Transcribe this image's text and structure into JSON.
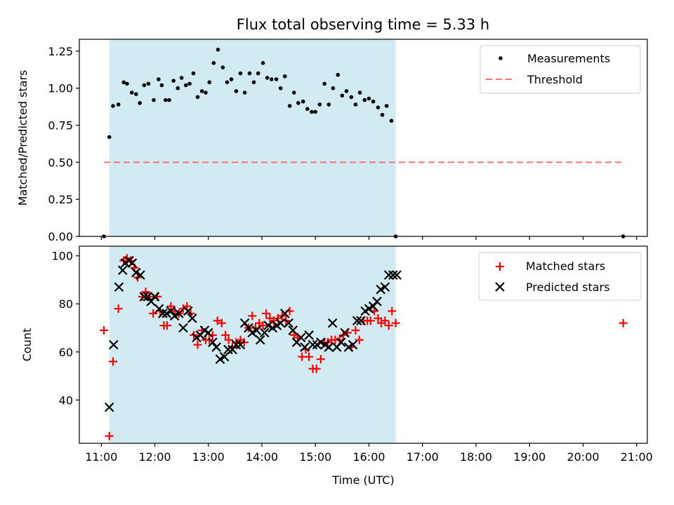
{
  "chart_data": [
    {
      "type": "scatter",
      "title": "Flux total observing time = 5.33 h",
      "xlabel": "",
      "ylabel": "Matched/Predicted stars",
      "xlim": [
        10.59,
        21.2
      ],
      "ylim": [
        0.0,
        1.33
      ],
      "yticks": [
        "0.00",
        "0.25",
        "0.50",
        "0.75",
        "1.00",
        "1.25"
      ],
      "shaded_span": {
        "x_start": 11.15,
        "x_end": 16.5,
        "color": "#add8e6"
      },
      "series": [
        {
          "name": "Measurements",
          "marker": "dot",
          "color": "#000000",
          "x": [
            11.05,
            11.15,
            11.22,
            11.32,
            11.42,
            11.48,
            11.57,
            11.65,
            11.72,
            11.8,
            11.88,
            11.98,
            12.07,
            12.13,
            12.2,
            12.27,
            12.35,
            12.43,
            12.5,
            12.58,
            12.65,
            12.72,
            12.8,
            12.88,
            12.95,
            13.02,
            13.1,
            13.18,
            13.27,
            13.35,
            13.43,
            13.52,
            13.6,
            13.68,
            13.77,
            13.85,
            13.93,
            14.02,
            14.1,
            14.18,
            14.27,
            14.35,
            14.43,
            14.52,
            14.6,
            14.68,
            14.77,
            14.85,
            14.93,
            15.0,
            15.08,
            15.17,
            15.25,
            15.33,
            15.42,
            15.5,
            15.58,
            15.67,
            15.75,
            15.83,
            15.92,
            16.0,
            16.08,
            16.17,
            16.25,
            16.33,
            16.42,
            16.5,
            20.75
          ],
          "y": [
            0.0,
            0.67,
            0.88,
            0.89,
            1.04,
            1.03,
            0.97,
            0.96,
            0.9,
            1.02,
            1.03,
            0.92,
            1.06,
            1.02,
            0.92,
            0.92,
            1.05,
            1.0,
            1.07,
            1.02,
            1.03,
            1.1,
            0.94,
            0.98,
            0.97,
            1.04,
            1.17,
            1.26,
            1.14,
            1.04,
            1.06,
            0.98,
            1.1,
            0.97,
            1.1,
            1.04,
            1.1,
            1.17,
            1.07,
            1.06,
            1.06,
            1.0,
            1.08,
            0.88,
            0.97,
            0.9,
            0.91,
            0.86,
            0.84,
            0.84,
            0.89,
            1.03,
            0.89,
            1.0,
            1.09,
            0.95,
            0.98,
            0.94,
            0.89,
            0.97,
            0.92,
            0.93,
            0.91,
            0.87,
            0.82,
            0.88,
            0.78,
            0.0,
            0.0
          ]
        },
        {
          "name": "Threshold",
          "marker": "dashed-line",
          "color": "#ff7070",
          "x": [
            11.05,
            20.75
          ],
          "y": [
            0.5,
            0.5
          ]
        }
      ],
      "legend": "top-right"
    },
    {
      "type": "scatter",
      "title": "",
      "xlabel": "Time (UTC)",
      "ylabel": "Count",
      "xlim": [
        10.59,
        21.2
      ],
      "ylim": [
        22,
        104
      ],
      "xticks": [
        "11:00",
        "12:00",
        "13:00",
        "14:00",
        "15:00",
        "16:00",
        "17:00",
        "18:00",
        "19:00",
        "20:00",
        "21:00"
      ],
      "yticks": [
        "40",
        "60",
        "80",
        "100"
      ],
      "shaded_span": {
        "x_start": 11.15,
        "x_end": 16.5,
        "color": "#add8e6"
      },
      "series": [
        {
          "name": "Matched stars",
          "marker": "plus",
          "color": "#ff0000",
          "x": [
            11.05,
            11.15,
            11.22,
            11.32,
            11.42,
            11.48,
            11.55,
            11.62,
            11.68,
            11.77,
            11.83,
            11.9,
            11.97,
            12.05,
            12.1,
            12.17,
            12.23,
            12.3,
            12.37,
            12.45,
            12.53,
            12.6,
            12.67,
            12.73,
            12.8,
            12.88,
            12.95,
            13.02,
            13.08,
            13.17,
            13.25,
            13.32,
            13.38,
            13.45,
            13.52,
            13.6,
            13.67,
            13.75,
            13.82,
            13.88,
            13.95,
            14.02,
            14.08,
            14.15,
            14.22,
            14.3,
            14.38,
            14.45,
            14.52,
            14.6,
            14.67,
            14.75,
            14.82,
            14.88,
            14.95,
            15.02,
            15.1,
            15.17,
            15.23,
            15.3,
            15.37,
            15.45,
            15.52,
            15.6,
            15.67,
            15.75,
            15.82,
            15.9,
            15.97,
            16.03,
            16.1,
            16.17,
            16.23,
            16.3,
            16.37,
            16.43,
            16.5,
            20.75
          ],
          "y": [
            69,
            25,
            56,
            78,
            98,
            99,
            98,
            95,
            91,
            83,
            85,
            83,
            76,
            83,
            77,
            71,
            71,
            79,
            77,
            76,
            78,
            79,
            76,
            67,
            63,
            69,
            65,
            65,
            67,
            73,
            72,
            67,
            65,
            62,
            64,
            65,
            64,
            70,
            75,
            70,
            72,
            71,
            76,
            74,
            73,
            74,
            75,
            73,
            77,
            67,
            66,
            58,
            61,
            58,
            53,
            53,
            57,
            64,
            64,
            65,
            65,
            65,
            67,
            68,
            62,
            69,
            65,
            73,
            73,
            73,
            77,
            74,
            72,
            73,
            71,
            77,
            72,
            72
          ]
        },
        {
          "name": "Predicted stars",
          "marker": "x",
          "color": "#000000",
          "x": [
            11.15,
            11.23,
            11.33,
            11.4,
            11.45,
            11.52,
            11.58,
            11.65,
            11.73,
            11.8,
            11.87,
            11.93,
            12.0,
            12.08,
            12.15,
            12.22,
            12.3,
            12.37,
            12.45,
            12.53,
            12.62,
            12.7,
            12.78,
            12.85,
            12.93,
            13.0,
            13.08,
            13.15,
            13.22,
            13.3,
            13.37,
            13.45,
            13.52,
            13.6,
            13.68,
            13.75,
            13.82,
            13.9,
            13.97,
            14.05,
            14.12,
            14.2,
            14.28,
            14.35,
            14.43,
            14.5,
            14.58,
            14.65,
            14.73,
            14.8,
            14.88,
            14.95,
            15.03,
            15.1,
            15.18,
            15.25,
            15.32,
            15.4,
            15.48,
            15.55,
            15.62,
            15.7,
            15.78,
            15.85,
            15.93,
            16.0,
            16.08,
            16.15,
            16.22,
            16.3,
            16.37,
            16.45,
            16.52
          ],
          "y": [
            37,
            63,
            87,
            94,
            97,
            98,
            97,
            93,
            92,
            83,
            83,
            81,
            83,
            78,
            76,
            76,
            77,
            75,
            76,
            70,
            77,
            74,
            66,
            67,
            69,
            68,
            64,
            62,
            57,
            58,
            61,
            61,
            63,
            63,
            72,
            70,
            68,
            69,
            65,
            68,
            71,
            70,
            71,
            72,
            76,
            72,
            69,
            64,
            66,
            62,
            67,
            63,
            63,
            64,
            63,
            62,
            72,
            62,
            64,
            68,
            62,
            63,
            73,
            73,
            77,
            78,
            79,
            81,
            86,
            87,
            92,
            92,
            92
          ]
        }
      ],
      "legend": "top-right"
    }
  ]
}
